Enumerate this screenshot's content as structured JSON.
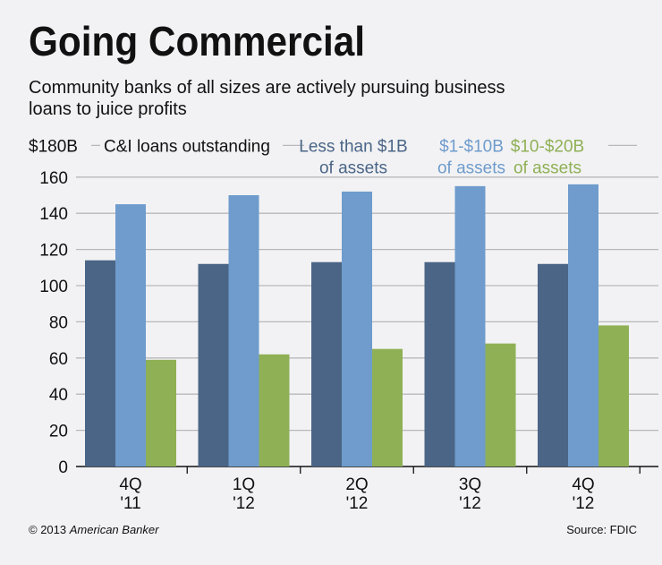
{
  "title": "Going Commercial",
  "subtitle_lines": [
    "Community banks of all sizes are actively pursuing business",
    "loans to juice profits"
  ],
  "footer": {
    "copyright": "© 2013",
    "publisher": "American Banker",
    "source": "Source: FDIC"
  },
  "chart_data": {
    "type": "bar",
    "ylabel": "C&I loans outstanding",
    "y_top_label": "$180B",
    "ylim": [
      0,
      180
    ],
    "yticks": [
      0,
      20,
      40,
      60,
      80,
      100,
      120,
      140,
      160
    ],
    "grid": true,
    "legend_position": "top",
    "categories": [
      [
        "4Q",
        "'11"
      ],
      [
        "1Q",
        "'12"
      ],
      [
        "2Q",
        "'12"
      ],
      [
        "3Q",
        "'12"
      ],
      [
        "4Q",
        "'12"
      ]
    ],
    "series": [
      {
        "name": "Less than $1B of assets",
        "name_lines": [
          "Less than $1B",
          "of assets"
        ],
        "color": "#4a6586",
        "values": [
          114,
          112,
          113,
          113,
          112
        ]
      },
      {
        "name": "$1-$10B of assets",
        "name_lines": [
          "$1-$10B",
          "of assets"
        ],
        "color": "#6f9ccc",
        "values": [
          145,
          150,
          152,
          155,
          156
        ]
      },
      {
        "name": "$10-$20B of assets",
        "name_lines": [
          "$10-$20B",
          "of assets"
        ],
        "color": "#8fb055",
        "values": [
          59,
          62,
          65,
          68,
          78
        ]
      }
    ]
  }
}
